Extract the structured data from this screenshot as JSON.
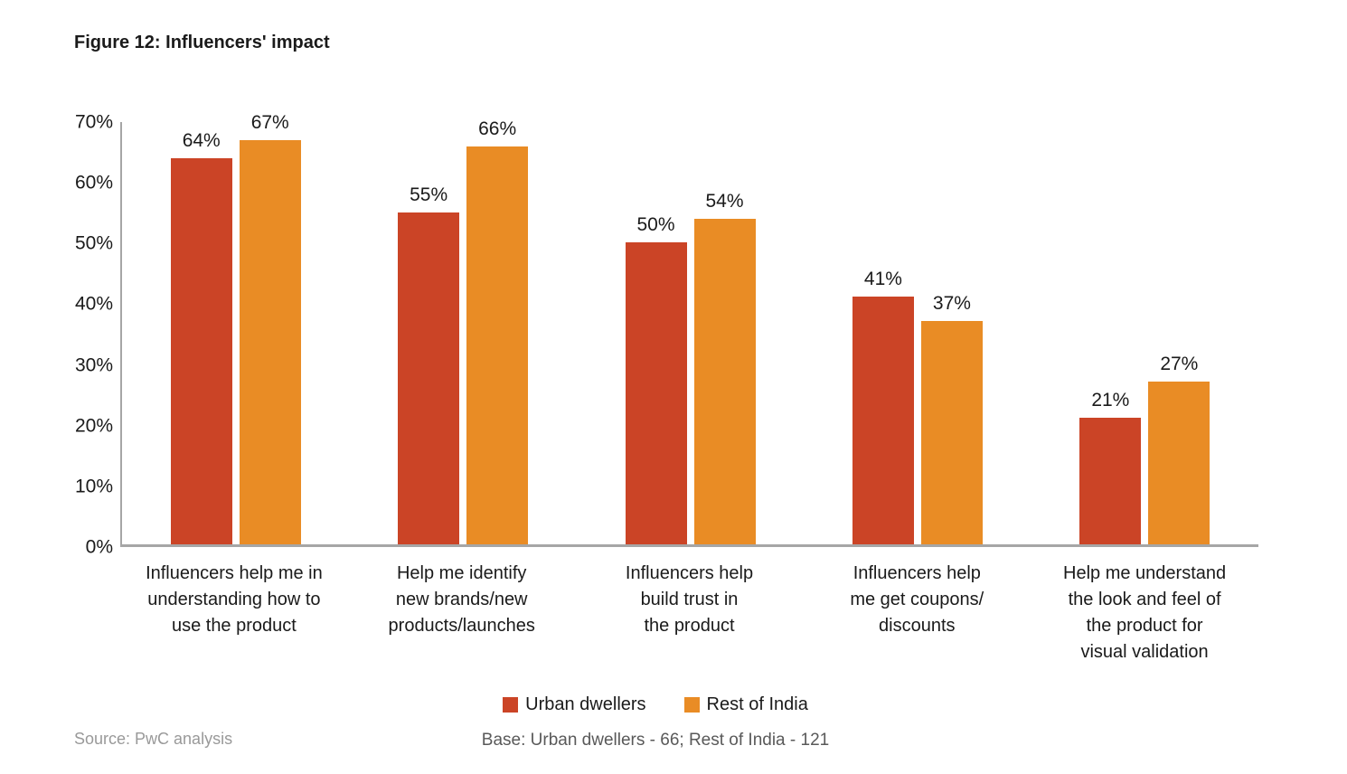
{
  "figure": {
    "title": "Figure 12: Influencers' impact",
    "source": "Source: PwC analysis",
    "base_note": "Base: Urban dwellers - 66; Rest of India - 121"
  },
  "chart_data": {
    "type": "bar",
    "title": "Figure 12: Influencers' impact",
    "categories": [
      [
        "Influencers help me in",
        "understanding how to",
        "use the product"
      ],
      [
        "Help me identify",
        "new brands/new",
        "products/launches"
      ],
      [
        "Influencers help",
        "build trust in",
        "the product"
      ],
      [
        "Influencers help",
        "me get coupons/",
        "discounts"
      ],
      [
        "Help me understand",
        "the look and feel of",
        "the product for",
        "visual validation"
      ]
    ],
    "series": [
      {
        "name": "Urban dwellers",
        "color": "#CB4426",
        "values": [
          64,
          55,
          50,
          41,
          21
        ]
      },
      {
        "name": "Rest of India",
        "color": "#E98C25",
        "values": [
          67,
          66,
          54,
          37,
          27
        ]
      }
    ],
    "value_label_format": "percent",
    "xlabel": "",
    "ylabel": "",
    "ylim": [
      0,
      70
    ],
    "yticks": [
      0,
      10,
      20,
      30,
      40,
      50,
      60,
      70
    ],
    "ytick_format": "percent",
    "grid": false,
    "legend_position": "bottom",
    "axis_color": "#A6A6A6",
    "source": "Source: PwC analysis",
    "base_note": "Base: Urban dwellers - 66; Rest of India - 121"
  }
}
